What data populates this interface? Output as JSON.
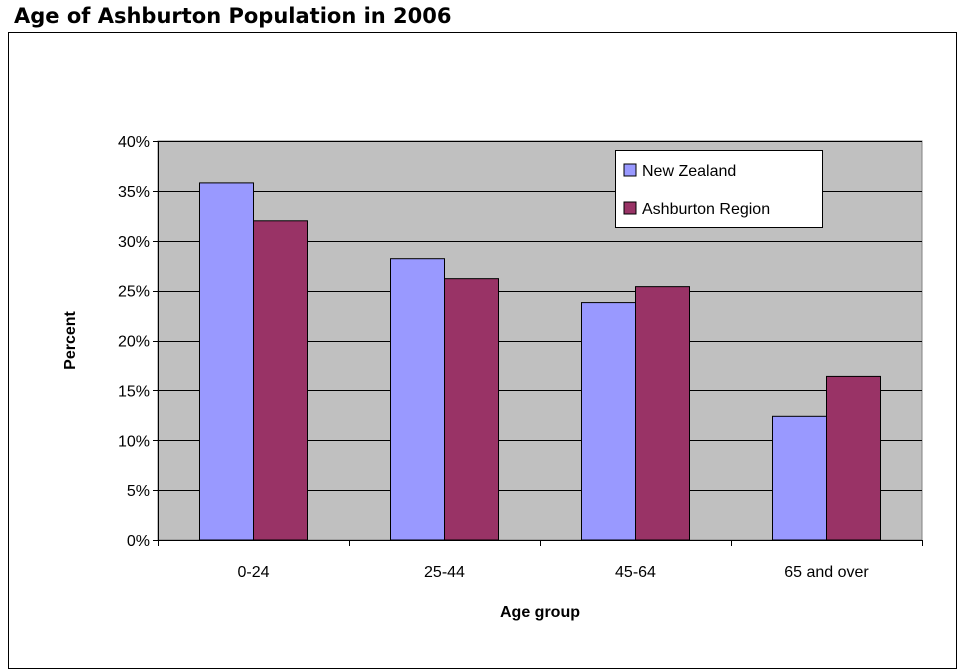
{
  "chart_data": {
    "type": "bar",
    "title": "Age of Ashburton Population in 2006",
    "xlabel": "Age group",
    "ylabel": "Percent",
    "categories": [
      "0-24",
      "25-44",
      "45-64",
      "65 and over"
    ],
    "series": [
      {
        "name": "New Zealand",
        "color": "#9999ff",
        "values": [
          35.8,
          28.2,
          23.8,
          12.4
        ]
      },
      {
        "name": "Ashburton Region",
        "color": "#993366",
        "values": [
          32.0,
          26.2,
          25.4,
          16.4
        ]
      }
    ],
    "ylim": [
      0,
      40
    ],
    "yticks": [
      0,
      5,
      10,
      15,
      20,
      25,
      30,
      35,
      40
    ],
    "ytick_labels": [
      "0%",
      "5%",
      "10%",
      "15%",
      "20%",
      "25%",
      "30%",
      "35%",
      "40%"
    ],
    "grid": true,
    "plot_background": "#c0c0c0",
    "legend_position": "top-right"
  }
}
